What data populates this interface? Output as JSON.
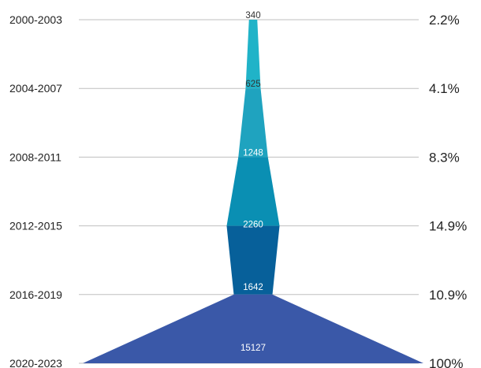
{
  "chart_data": {
    "type": "funnel",
    "title": "",
    "categories": [
      "2000-2003",
      "2004-2007",
      "2008-2011",
      "2012-2015",
      "2016-2019",
      "2020-2023"
    ],
    "values": [
      340,
      625,
      1248,
      2260,
      1642,
      15127
    ],
    "value_labels": [
      "340",
      "625",
      "1248",
      "2260",
      "1642",
      "15127"
    ],
    "percent_labels": [
      "2.2%",
      "4.1%",
      "8.3%",
      "14.9%",
      "10.9%",
      "100%"
    ],
    "max_value": 15127,
    "segment_colors": [
      "#20B3C8",
      "#20B3C8",
      "#1FA3BF",
      "#0A8FB3",
      "#07609A",
      "#3A58A8"
    ],
    "gridline_color": "#BFBFBF",
    "value_label_colors": [
      "#333333",
      "#333333",
      "#ffffff",
      "#ffffff",
      "#ffffff",
      "#ffffff"
    ]
  }
}
